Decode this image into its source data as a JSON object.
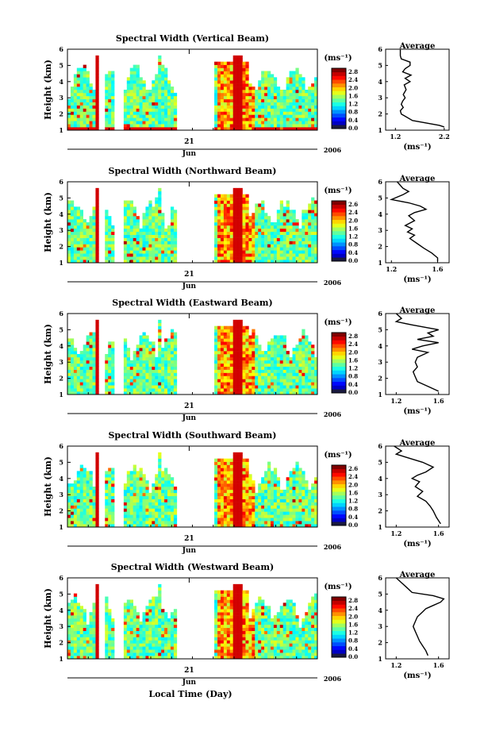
{
  "figure": {
    "time_axis": {
      "day_label": "21",
      "month_label": "Jun",
      "year_label": "2006",
      "xlabel": "Local Time (Day)"
    },
    "height_ticks": [
      1,
      2,
      3,
      4,
      5,
      6
    ],
    "height_label": "Height (km)"
  },
  "chart_data": [
    {
      "type": "heatmap",
      "title": "Spectral Width (Vertical Beam)",
      "ylabel": "Height (km)",
      "ylim": [
        1,
        6
      ],
      "colorbar": {
        "unit": "(ms⁻¹)",
        "ticks": [
          "0.0",
          "0.4",
          "0.8",
          "1.2",
          "1.6",
          "2.0",
          "2.4",
          "2.8"
        ],
        "max": 3.0
      },
      "average": {
        "title": "Average",
        "xlabel": "(ms⁻¹)",
        "xticks": [
          "1.2",
          "2.2"
        ],
        "xlim": [
          1.0,
          2.3
        ],
        "profile_x": [
          1.3,
          1.3,
          1.32,
          1.5,
          1.5,
          1.4,
          1.35,
          1.52,
          1.4,
          1.5,
          1.38,
          1.42,
          1.36,
          1.4,
          1.35,
          1.32,
          1.36,
          1.3,
          1.32,
          1.55,
          2.1,
          2.2
        ],
        "profile_y": [
          6.0,
          5.6,
          5.4,
          5.2,
          5.0,
          4.8,
          4.6,
          4.4,
          4.2,
          4.0,
          3.8,
          3.5,
          3.2,
          3.0,
          2.8,
          2.6,
          2.4,
          2.2,
          2.0,
          1.6,
          1.3,
          1.2
        ]
      }
    },
    {
      "type": "heatmap",
      "title": "Spectral Width (Northward Beam)",
      "ylabel": "Height (km)",
      "ylim": [
        1,
        6
      ],
      "colorbar": {
        "unit": "(ms⁻¹)",
        "ticks": [
          "0.0",
          "0.4",
          "0.8",
          "1.2",
          "1.6",
          "2.0",
          "2.4",
          "2.6"
        ],
        "max": 2.8
      },
      "average": {
        "title": "Average",
        "xlabel": "(ms⁻¹)",
        "xticks": [
          "1.2",
          "1.6"
        ],
        "xlim": [
          1.15,
          1.7
        ],
        "profile_x": [
          1.25,
          1.3,
          1.35,
          1.3,
          1.2,
          1.35,
          1.45,
          1.5,
          1.4,
          1.35,
          1.4,
          1.32,
          1.38,
          1.34,
          1.4,
          1.36,
          1.42,
          1.48,
          1.55,
          1.6,
          1.6
        ],
        "profile_y": [
          6.0,
          5.6,
          5.4,
          5.2,
          4.9,
          4.7,
          4.5,
          4.3,
          4.1,
          3.9,
          3.6,
          3.3,
          3.1,
          2.9,
          2.7,
          2.5,
          2.2,
          1.9,
          1.6,
          1.3,
          1.1
        ]
      }
    },
    {
      "type": "heatmap",
      "title": "Spectral Width (Eastward Beam)",
      "ylabel": "Height (km)",
      "ylim": [
        1,
        6
      ],
      "colorbar": {
        "unit": "(ms⁻¹)",
        "ticks": [
          "0.0",
          "0.4",
          "0.8",
          "1.2",
          "1.6",
          "2.0",
          "2.4",
          "2.8"
        ],
        "max": 3.0
      },
      "average": {
        "title": "Average",
        "xlabel": "(ms⁻¹)",
        "xticks": [
          "1.2",
          "1.6"
        ],
        "xlim": [
          1.1,
          1.7
        ],
        "profile_x": [
          1.2,
          1.25,
          1.2,
          1.35,
          1.6,
          1.5,
          1.55,
          1.4,
          1.6,
          1.45,
          1.35,
          1.5,
          1.4,
          1.38,
          1.4,
          1.36,
          1.38,
          1.4,
          1.5,
          1.6
        ],
        "profile_y": [
          6.0,
          5.7,
          5.5,
          5.3,
          5.0,
          4.8,
          4.6,
          4.4,
          4.2,
          4.0,
          3.8,
          3.6,
          3.3,
          3.0,
          2.7,
          2.4,
          2.1,
          1.8,
          1.5,
          1.2
        ]
      }
    },
    {
      "type": "heatmap",
      "title": "Spectral Width (Southward Beam)",
      "ylabel": "Height (km)",
      "ylim": [
        1,
        6
      ],
      "colorbar": {
        "unit": "(ms⁻¹)",
        "ticks": [
          "0.0",
          "0.4",
          "0.8",
          "1.2",
          "1.6",
          "2.0",
          "2.4",
          "2.6"
        ],
        "max": 2.8
      },
      "average": {
        "title": "Average",
        "xlabel": "(ms⁻¹)",
        "xticks": [
          "1.2",
          "1.6"
        ],
        "xlim": [
          1.1,
          1.7
        ],
        "profile_x": [
          1.18,
          1.25,
          1.2,
          1.3,
          1.45,
          1.55,
          1.48,
          1.4,
          1.35,
          1.42,
          1.38,
          1.45,
          1.4,
          1.48,
          1.52,
          1.55,
          1.58,
          1.62
        ],
        "profile_y": [
          6.0,
          5.7,
          5.5,
          5.3,
          5.0,
          4.7,
          4.4,
          4.2,
          4.0,
          3.8,
          3.5,
          3.2,
          2.9,
          2.6,
          2.3,
          2.0,
          1.6,
          1.2
        ]
      }
    },
    {
      "type": "heatmap",
      "title": "Spectral Width (Westward Beam)",
      "ylabel": "Height (km)",
      "ylim": [
        1,
        6
      ],
      "colorbar": {
        "unit": "(ms⁻¹)",
        "ticks": [
          "0.0",
          "0.4",
          "0.8",
          "1.2",
          "1.6",
          "2.0",
          "2.4",
          "2.8"
        ],
        "max": 3.0
      },
      "average": {
        "title": "Average",
        "xlabel": "(ms⁻¹)",
        "xticks": [
          "1.2",
          "1.6"
        ],
        "xlim": [
          1.1,
          1.7
        ],
        "profile_x": [
          1.2,
          1.25,
          1.3,
          1.35,
          1.55,
          1.65,
          1.62,
          1.55,
          1.48,
          1.45,
          1.4,
          1.38,
          1.36,
          1.38,
          1.4,
          1.42,
          1.45,
          1.48,
          1.5
        ],
        "profile_y": [
          6.0,
          5.7,
          5.4,
          5.1,
          4.9,
          4.7,
          4.5,
          4.3,
          4.1,
          3.9,
          3.6,
          3.3,
          3.0,
          2.7,
          2.4,
          2.1,
          1.8,
          1.5,
          1.2
        ]
      }
    }
  ]
}
